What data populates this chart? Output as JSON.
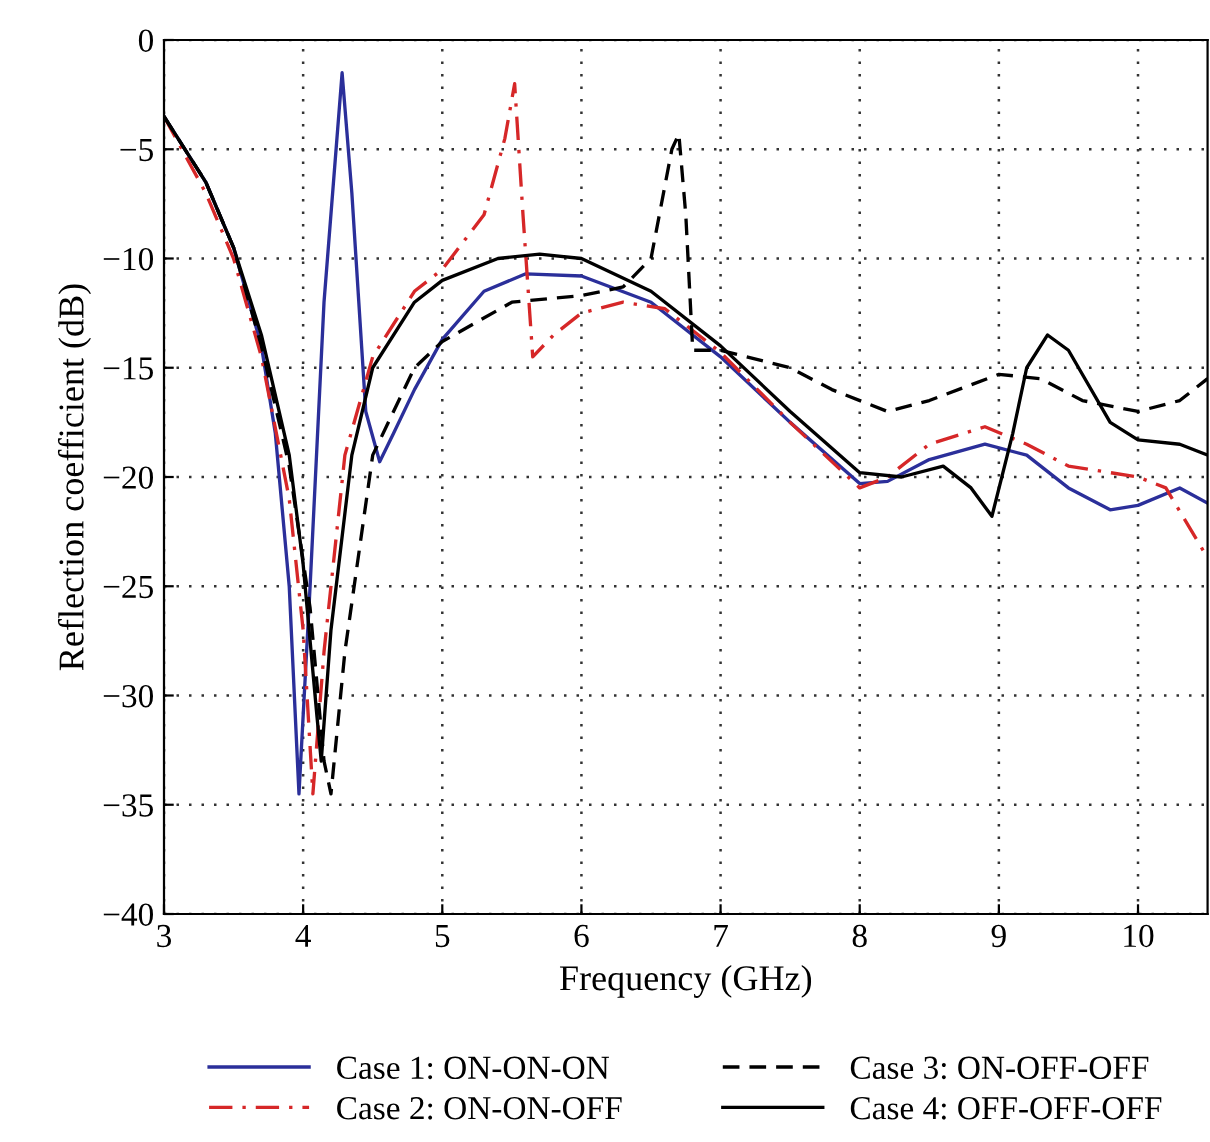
{
  "chart_data": {
    "type": "line",
    "xlabel": "Frequency (GHz)",
    "ylabel": "Reflection coefficient (dB)",
    "xlim": [
      3,
      10.5
    ],
    "ylim": [
      -40,
      0
    ],
    "xticks": [
      3,
      4,
      5,
      6,
      7,
      8,
      9,
      10
    ],
    "yticks": [
      {
        "value": -40,
        "label": "−40"
      },
      {
        "value": -35,
        "label": "−35"
      },
      {
        "value": -30,
        "label": "−30"
      },
      {
        "value": -25,
        "label": "−25"
      },
      {
        "value": -20,
        "label": "−20"
      },
      {
        "value": -15,
        "label": "−15"
      },
      {
        "value": -10,
        "label": "−10"
      },
      {
        "value": -5,
        "label": "−5"
      },
      0
    ],
    "grid": true,
    "legend": "bottom",
    "marker": "none",
    "series": [
      {
        "name": "Case 1: ON-ON-ON",
        "color": "#2b2f9a",
        "line_style": "solid",
        "x": [
          3,
          3.3,
          3.5,
          3.7,
          3.8,
          3.9,
          3.97,
          4.05,
          4.15,
          4.28,
          4.35,
          4.45,
          4.55,
          4.65,
          4.8,
          5.0,
          5.3,
          5.6,
          6.0,
          6.5,
          7.0,
          7.5,
          8.0,
          8.2,
          8.5,
          8.9,
          9.2,
          9.5,
          9.8,
          10.0,
          10.3,
          10.5
        ],
        "values": [
          -3.5,
          -6.5,
          -9.5,
          -14,
          -18,
          -25,
          -34.5,
          -25,
          -12,
          -1.5,
          -7,
          -17,
          -19.3,
          -18,
          -16,
          -13.7,
          -11.5,
          -10.7,
          -10.8,
          -12,
          -14.5,
          -17.5,
          -20.3,
          -20.2,
          -19.2,
          -18.5,
          -19,
          -20.5,
          -21.5,
          -21.3,
          -20.5,
          -21.2
        ]
      },
      {
        "name": "Case 2: ON-ON-OFF",
        "color": "#d62728",
        "line_style": "dashdot",
        "x": [
          3,
          3.3,
          3.5,
          3.7,
          3.9,
          4.0,
          4.07,
          4.15,
          4.3,
          4.5,
          4.8,
          5.0,
          5.3,
          5.45,
          5.52,
          5.58,
          5.65,
          5.8,
          6.0,
          6.3,
          6.6,
          7.0,
          7.5,
          8.0,
          8.2,
          8.5,
          8.9,
          9.2,
          9.5,
          10.0,
          10.2,
          10.5
        ],
        "values": [
          -3.5,
          -7,
          -10,
          -14.5,
          -21,
          -27,
          -34.5,
          -28,
          -19,
          -14.5,
          -11.5,
          -10.5,
          -8,
          -4.5,
          -2,
          -8,
          -14.5,
          -13.5,
          -12.5,
          -12,
          -12.3,
          -14.3,
          -17.5,
          -20.5,
          -20,
          -18.5,
          -17.7,
          -18.5,
          -19.5,
          -20,
          -20.5,
          -23.7
        ]
      },
      {
        "name": "Case 3: ON-OFF-OFF",
        "color": "#000000",
        "line_style": "dashed",
        "x": [
          3,
          3.3,
          3.5,
          3.7,
          3.9,
          4.05,
          4.15,
          4.2,
          4.3,
          4.5,
          4.8,
          5.0,
          5.5,
          6.0,
          6.3,
          6.5,
          6.65,
          6.7,
          6.75,
          6.8,
          7.0,
          7.5,
          7.8,
          8.2,
          8.5,
          9.0,
          9.3,
          9.6,
          10.0,
          10.3,
          10.5
        ],
        "values": [
          -3.5,
          -6.5,
          -9.5,
          -14,
          -19.5,
          -26,
          -33,
          -34.5,
          -28,
          -19,
          -15,
          -13.8,
          -12,
          -11.7,
          -11.3,
          -10,
          -5,
          -4.3,
          -8,
          -14.2,
          -14.2,
          -15,
          -16,
          -17,
          -16.5,
          -15.3,
          -15.5,
          -16.5,
          -17,
          -16.5,
          -15.5
        ]
      },
      {
        "name": "Case 4: OFF-OFF-OFF",
        "color": "#000000",
        "line_style": "solid",
        "x": [
          3,
          3.3,
          3.5,
          3.7,
          3.9,
          4.0,
          4.1,
          4.13,
          4.2,
          4.35,
          4.5,
          4.8,
          5.0,
          5.4,
          5.7,
          6.0,
          6.5,
          7.0,
          7.5,
          8.0,
          8.3,
          8.6,
          8.8,
          8.95,
          9.1,
          9.2,
          9.35,
          9.5,
          9.8,
          10.0,
          10.3,
          10.5
        ],
        "values": [
          -3.5,
          -6.5,
          -9.5,
          -13.5,
          -19,
          -24,
          -31,
          -33,
          -27,
          -19,
          -15,
          -12,
          -11,
          -10,
          -9.8,
          -10,
          -11.5,
          -14,
          -17,
          -19.8,
          -20,
          -19.5,
          -20.5,
          -21.8,
          -18,
          -15,
          -13.5,
          -14.2,
          -17.5,
          -18.3,
          -18.5,
          -19
        ]
      }
    ]
  }
}
